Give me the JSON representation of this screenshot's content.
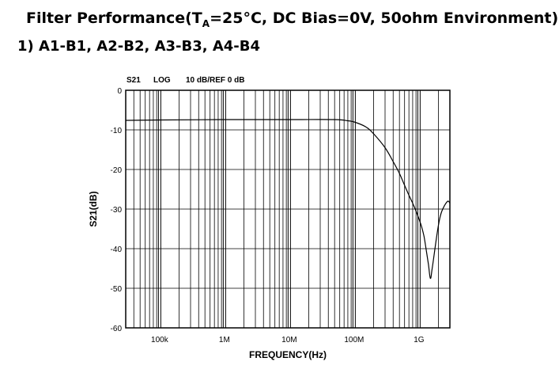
{
  "header": {
    "title_pre": "Filter Performance(T",
    "title_sub": "A",
    "title_post": "=25°C, DC Bias=0V, 50ohm Environment)",
    "subtitle": "1) A1-B1, A2-B2, A3-B3, A4-B4"
  },
  "chart_header": {
    "param": "S21",
    "scale": "LOG",
    "ref": "10 dB/REF 0 dB"
  },
  "chart_data": {
    "type": "line",
    "title": "",
    "xlabel": "FREQUENCY(Hz)",
    "ylabel": "S21(dB)",
    "xscale": "log",
    "xlim": [
      30000,
      3000000000
    ],
    "ylim": [
      -60,
      0
    ],
    "grid": true,
    "x_ticks": [
      {
        "value": 100000,
        "label": "100k"
      },
      {
        "value": 1000000,
        "label": "1M"
      },
      {
        "value": 10000000,
        "label": "10M"
      },
      {
        "value": 100000000,
        "label": "100M"
      },
      {
        "value": 1000000000,
        "label": "1G"
      }
    ],
    "y_ticks": [
      {
        "value": 0,
        "label": "0"
      },
      {
        "value": -10,
        "label": "-10"
      },
      {
        "value": -20,
        "label": "-20"
      },
      {
        "value": -30,
        "label": "-30"
      },
      {
        "value": -40,
        "label": "-40"
      },
      {
        "value": -50,
        "label": "-50"
      },
      {
        "value": -60,
        "label": "-60"
      }
    ],
    "series": [
      {
        "x": [
          30000,
          100000,
          1000000,
          10000000,
          50000000,
          80000000,
          100000000,
          150000000,
          200000000,
          300000000,
          400000000,
          500000000,
          600000000,
          700000000,
          800000000,
          900000000,
          1000000000,
          1100000000,
          1200000000,
          1300000000,
          1400000000,
          1500000000,
          1600000000,
          1800000000,
          2000000000,
          2200000000,
          2500000000,
          2800000000,
          3000000000
        ],
        "y": [
          -7.6,
          -7.5,
          -7.4,
          -7.4,
          -7.4,
          -7.7,
          -8.0,
          -9.2,
          -11.0,
          -14.5,
          -18.0,
          -21.0,
          -24.0,
          -26.5,
          -28.5,
          -30.5,
          -32.5,
          -34.5,
          -37.0,
          -40.5,
          -44.0,
          -47.5,
          -45.0,
          -39.0,
          -34.0,
          -31.0,
          -29.0,
          -28.0,
          -28.5
        ]
      }
    ]
  }
}
